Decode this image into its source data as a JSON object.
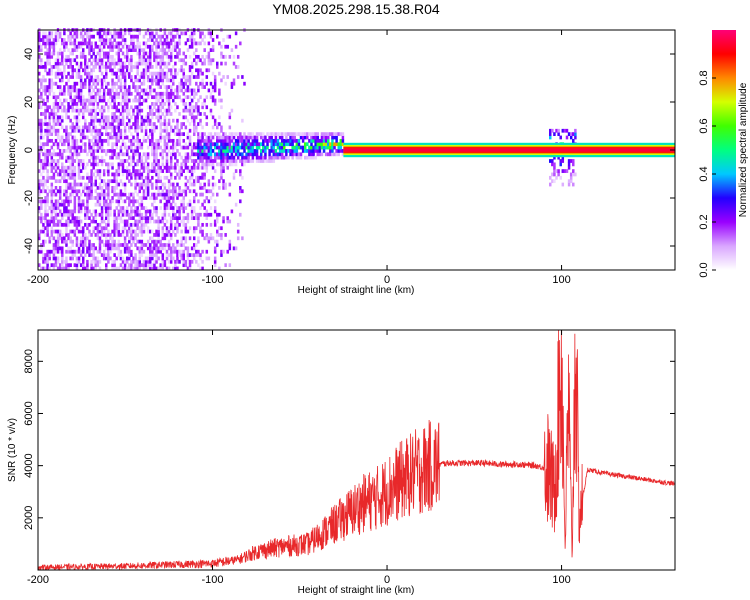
{
  "title": "YM08.2025.298.15.38.R04",
  "chart_data": [
    {
      "type": "heatmap",
      "name": "spectrogram",
      "xlabel": "Height of straight line (km)",
      "ylabel": "Frequency (Hz)",
      "xlim": [
        -200,
        165
      ],
      "ylim": [
        -50,
        50
      ],
      "xticks": [
        -200,
        -100,
        0,
        100
      ],
      "yticks": [
        -40,
        -20,
        0,
        20,
        40
      ],
      "colorbar": {
        "label": "Normalized spectral amplitude",
        "range": [
          0,
          1
        ],
        "ticks": [
          "0.0",
          "0.2",
          "0.4",
          "0.6",
          "0.8"
        ],
        "colors": [
          "#ffffff",
          "#d9a6ff",
          "#9900ff",
          "#2200ff",
          "#00c8ff",
          "#00ff80",
          "#40ff00",
          "#d4ff00",
          "#ff8800",
          "#ff0000",
          "#ff0077"
        ]
      },
      "features": [
        {
          "name": "noise",
          "x_range": [
            -200,
            -82
          ],
          "freq_range": [
            -50,
            50
          ],
          "amplitude": 0.15
        },
        {
          "name": "transition",
          "x_range": [
            -110,
            -25
          ],
          "freq_range": [
            -10,
            10
          ],
          "amplitude": 0.35
        },
        {
          "name": "carrier",
          "x_range": [
            -25,
            165
          ],
          "freq": 0,
          "amplitude": 0.95
        },
        {
          "name": "disturbance",
          "x_range": [
            92,
            108
          ],
          "freq_range": [
            -16,
            8
          ],
          "amplitude": 0.4
        }
      ]
    },
    {
      "type": "line",
      "name": "snr",
      "xlabel": "Height of straight line (km)",
      "ylabel": "SNR (10 * v/v)",
      "xlim": [
        -200,
        165
      ],
      "ylim": [
        0,
        9200
      ],
      "xticks": [
        -200,
        -100,
        0,
        100
      ],
      "yticks": [
        2000,
        4000,
        6000,
        8000
      ],
      "color": "#e8282a",
      "series": [
        {
          "name": "SNR",
          "x": [
            -200,
            -150,
            -100,
            -85,
            -75,
            -60,
            -45,
            -35,
            -25,
            -15,
            -5,
            5,
            15,
            25,
            35,
            45,
            55,
            65,
            75,
            85,
            92,
            96,
            98,
            100,
            102,
            104,
            106,
            108,
            110,
            115,
            125,
            140,
            150,
            165
          ],
          "y": [
            100,
            150,
            250,
            400,
            700,
            900,
            1000,
            1500,
            2000,
            2500,
            2800,
            3300,
            3700,
            4000,
            4100,
            4100,
            4100,
            4050,
            4050,
            4000,
            3900,
            3000,
            6000,
            8500,
            1000,
            6500,
            500,
            9000,
            2000,
            3850,
            3700,
            3550,
            3450,
            3300
          ]
        }
      ]
    }
  ]
}
